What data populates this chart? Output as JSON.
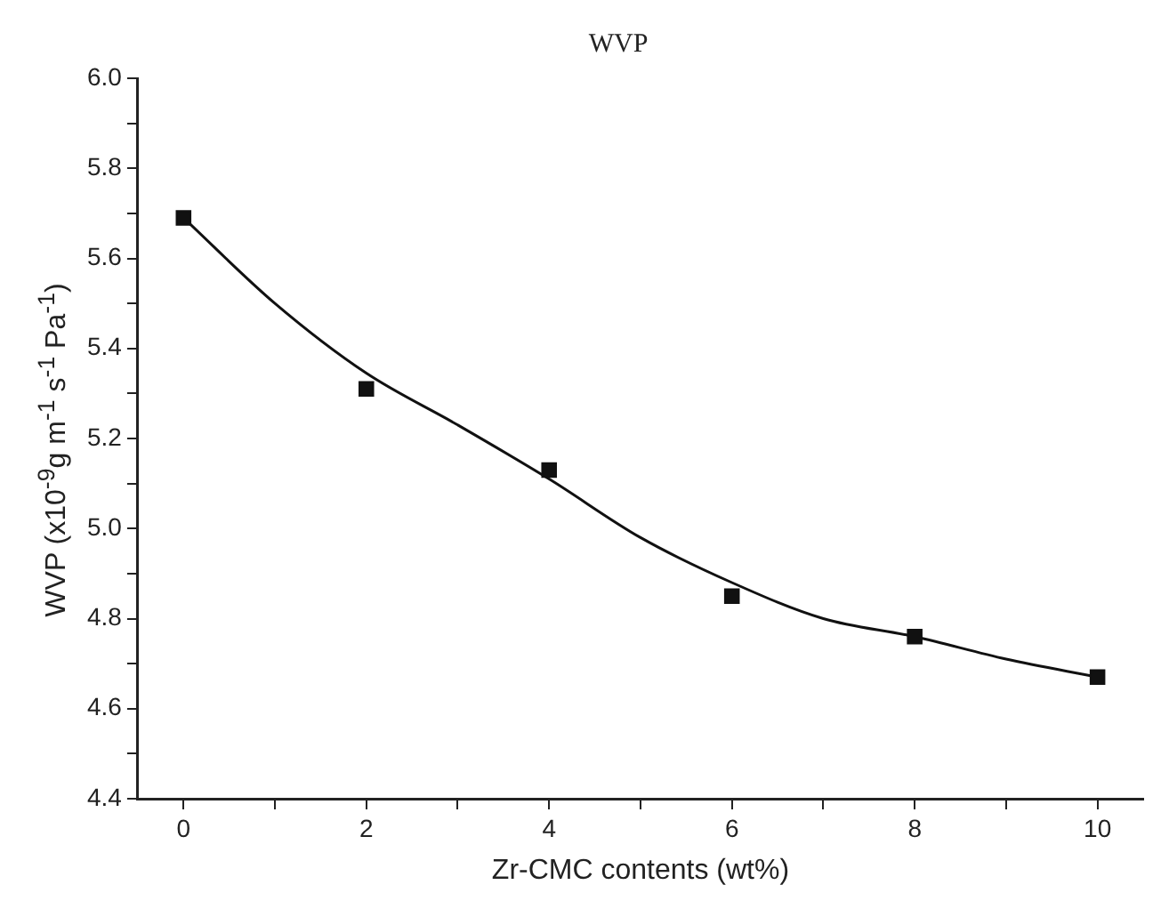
{
  "chart_data": {
    "type": "scatter",
    "title": "WVP",
    "xlabel": "Zr-CMC contents (wt%)",
    "ylabel": "WVP (x10$^{-9}$g m$^{-1}$ s$^{-1}$ Pa$^{-1}$)",
    "x": [
      0,
      2,
      4,
      6,
      8,
      10
    ],
    "series": [
      {
        "type": "scatter",
        "color": "#111111",
        "values": [
          5.69,
          5.31,
          5.13,
          4.85,
          4.76,
          4.67
        ]
      },
      {
        "type": "line",
        "color": "#111111",
        "marker": "none",
        "x": [
          0,
          1,
          2,
          3,
          4,
          5,
          6,
          7,
          8,
          9,
          10
        ],
        "values": [
          5.69,
          5.5,
          5.345,
          5.23,
          5.11,
          4.98,
          4.88,
          4.8,
          4.76,
          4.71,
          4.67
        ]
      }
    ],
    "marker": "square",
    "line_style": "solid",
    "grid": false,
    "legend": false,
    "xlim": [
      -0.5,
      10.5
    ],
    "xticks": [
      0,
      {
        "value": 1,
        "label": null
      },
      2,
      {
        "value": 3,
        "label": null
      },
      4,
      {
        "value": 5,
        "label": null
      },
      6,
      {
        "value": 7,
        "label": null
      },
      8,
      {
        "value": 9,
        "label": null
      },
      10
    ],
    "ylim": [
      4.4,
      6.0
    ],
    "yticks": [
      {
        "value": 4.4,
        "label": "4.4"
      },
      {
        "value": 4.5,
        "label": null
      },
      {
        "value": 4.6,
        "label": "4.6"
      },
      {
        "value": 4.7,
        "label": null
      },
      {
        "value": 4.8,
        "label": "4.8"
      },
      {
        "value": 4.9,
        "label": null
      },
      {
        "value": 5.0,
        "label": "5.0"
      },
      {
        "value": 5.1,
        "label": null
      },
      {
        "value": 5.2,
        "label": "5.2"
      },
      {
        "value": 5.3,
        "label": null
      },
      {
        "value": 5.4,
        "label": "5.4"
      },
      {
        "value": 5.5,
        "label": null
      },
      {
        "value": 5.6,
        "label": "5.6"
      },
      {
        "value": 5.7,
        "label": null
      },
      {
        "value": 5.8,
        "label": "5.8"
      },
      {
        "value": 5.9,
        "label": null
      },
      {
        "value": 6.0,
        "label": "6.0"
      }
    ]
  }
}
